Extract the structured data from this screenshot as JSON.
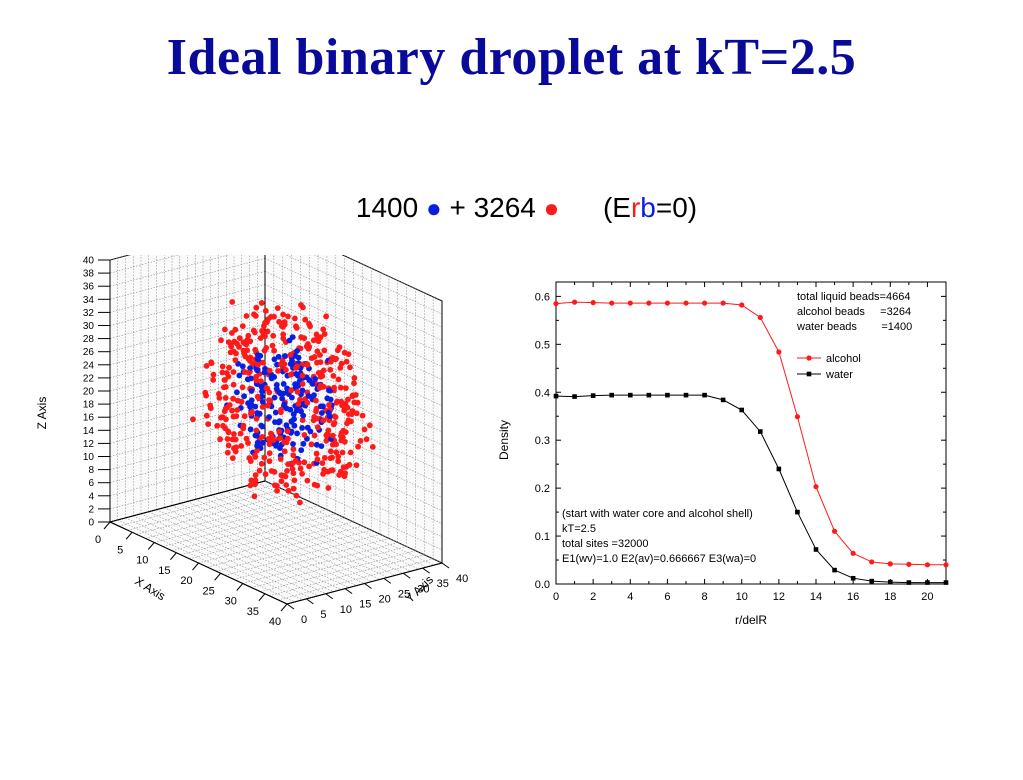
{
  "title": "Ideal binary droplet at kT=2.5",
  "subtitle": {
    "count_1": "1400",
    "dot_1": "●",
    "plus": "+",
    "count_2": "3264",
    "dot_2": "●",
    "paren_open": "(E",
    "r": "r",
    "b": "b",
    "paren_close": "=0)"
  },
  "colors": {
    "title": "#0a0a9a",
    "blue": "#0a1ee0",
    "red": "#ff1a1a",
    "alcohol": "#ff1a1a",
    "water": "#000000"
  },
  "chart_data": [
    {
      "type": "scatter",
      "subtype": "3d-scatter",
      "xlabel": "X Axis",
      "ylabel": "Y Axis",
      "zlabel": "Z Axis",
      "xticks": [
        "0",
        "5",
        "10",
        "15",
        "20",
        "25",
        "30",
        "35",
        "40"
      ],
      "yticks": [
        "0",
        "5",
        "10",
        "15",
        "20",
        "25",
        "30",
        "35",
        "40"
      ],
      "zticks": [
        "0",
        "2",
        "4",
        "6",
        "8",
        "10",
        "12",
        "14",
        "16",
        "18",
        "20",
        "22",
        "24",
        "26",
        "28",
        "30",
        "32",
        "34",
        "36",
        "38",
        "40"
      ],
      "xlim": [
        0,
        40
      ],
      "ylim": [
        0,
        40
      ],
      "zlim": [
        0,
        40
      ],
      "series": [
        {
          "color": "#0a1ee0",
          "count": 1400
        },
        {
          "color": "#ff1a1a",
          "count": 3264
        }
      ],
      "grid": true
    },
    {
      "type": "line",
      "xlabel": "r/delR",
      "ylabel": "Density",
      "xlim": [
        0,
        21
      ],
      "ylim": [
        0,
        0.63
      ],
      "xticks": [
        "0",
        "2",
        "4",
        "6",
        "8",
        "10",
        "12",
        "14",
        "16",
        "18",
        "20"
      ],
      "yticks": [
        "0.0",
        "0.1",
        "0.2",
        "0.3",
        "0.4",
        "0.5",
        "0.6"
      ],
      "x": [
        0,
        1,
        2,
        3,
        4,
        5,
        6,
        7,
        8,
        9,
        10,
        11,
        12,
        13,
        14,
        15,
        16,
        17,
        18,
        19,
        20,
        21
      ],
      "series": [
        {
          "name": "alcohol",
          "color": "#ff1a1a",
          "marker": "circle",
          "values": [
            0.585,
            0.588,
            0.587,
            0.586,
            0.586,
            0.586,
            0.586,
            0.586,
            0.586,
            0.586,
            0.582,
            0.556,
            0.484,
            0.349,
            0.203,
            0.11,
            0.064,
            0.046,
            0.042,
            0.041,
            0.04,
            0.04
          ]
        },
        {
          "name": "water",
          "color": "#000000",
          "marker": "square",
          "values": [
            0.392,
            0.391,
            0.393,
            0.394,
            0.394,
            0.394,
            0.394,
            0.394,
            0.394,
            0.384,
            0.363,
            0.318,
            0.24,
            0.15,
            0.072,
            0.029,
            0.012,
            0.006,
            0.004,
            0.003,
            0.003,
            0.003
          ]
        }
      ],
      "legend_position": "top-right",
      "info_box": [
        "total liquid beads=4664",
        "alcohol beads     =3264",
        "water beads        =1400"
      ],
      "annotation": [
        "(start with water core and alcohol shell)",
        "kT=2.5",
        "total sites   =32000",
        "E1(wv)=1.0 E2(av)=0.666667 E3(wa)=0"
      ]
    }
  ]
}
